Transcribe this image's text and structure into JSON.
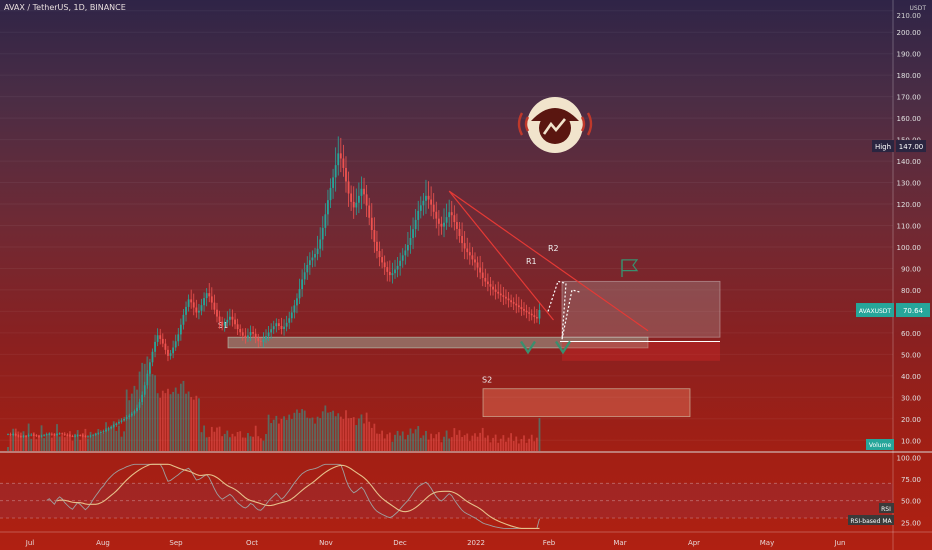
{
  "header": {
    "title": "AVAX / TetherUS, 1D, BINANCE"
  },
  "price_axis": {
    "currency": "USDT",
    "top_tick": "210.00",
    "ticks": [
      "200.00",
      "190.00",
      "180.00",
      "170.00",
      "160.00",
      "150.00",
      "140.00",
      "130.00",
      "120.00",
      "110.00",
      "100.00",
      "90.00",
      "80.00",
      "70.00",
      "60.00",
      "50.00",
      "40.00",
      "30.00",
      "20.00",
      "10.00"
    ],
    "high_badge_label": "High",
    "high_badge_value": "147.00",
    "symbol_badge": "AVAXUSDT",
    "last_price": "70.64",
    "volume_badge": "Volume"
  },
  "rsi_axis": {
    "ticks": [
      "100.00",
      "75.00",
      "50.00",
      "25.00"
    ],
    "rsi_badge": "RSI",
    "rsi_ma_badge": "RSI-based MA"
  },
  "time_axis": {
    "ticks": [
      "Jul",
      "Aug",
      "Sep",
      "Oct",
      "Nov",
      "Dec",
      "2022",
      "Feb",
      "Mar",
      "Apr",
      "May",
      "Jun"
    ]
  },
  "annotations": {
    "s1": "S1",
    "s2": "S2",
    "r1": "R1",
    "r2": "R2",
    "support_zone_s1": [
      53,
      58
    ],
    "support_zone_s2": [
      21,
      34
    ],
    "resistance_zone": [
      58,
      84
    ],
    "horizontal_line": 56
  },
  "colors": {
    "up": "#26a69a",
    "down": "#ef5350",
    "trendline": "#e53935",
    "projection": "#ffffff",
    "rsi": "#9e9e9e",
    "rsi_ma": "#e6c08a",
    "badge": "#26a69a"
  },
  "chart_data": {
    "type": "candlestick",
    "symbol": "AVAX / TetherUS",
    "interval": "1D",
    "x_range": [
      "2021-06-16",
      "2022-06-30"
    ],
    "y_range": [
      5,
      215
    ],
    "rsi_range": [
      15,
      105
    ],
    "close": [
      12.8,
      12.5,
      12.9,
      12.2,
      11.8,
      11.6,
      12.1,
      11.9,
      12.4,
      12.6,
      12.3,
      12.0,
      11.7,
      12.2,
      12.5,
      12.8,
      13.0,
      12.7,
      12.4,
      12.9,
      13.2,
      13.0,
      12.6,
      12.3,
      12.0,
      11.8,
      12.1,
      12.4,
      12.2,
      11.9,
      11.6,
      11.8,
      12.1,
      12.5,
      12.9,
      13.3,
      13.8,
      14.2,
      14.9,
      15.6,
      16.3,
      17.1,
      17.8,
      18.6,
      19.2,
      19.9,
      20.8,
      21.5,
      22.4,
      23.6,
      25.1,
      27.8,
      31.2,
      35.6,
      41.0,
      46.3,
      51.2,
      55.8,
      58.9,
      57.2,
      55.0,
      52.1,
      49.3,
      50.5,
      53.2,
      56.1,
      59.3,
      63.8,
      68.4,
      72.1,
      75.6,
      74.2,
      71.8,
      69.5,
      70.3,
      72.9,
      76.2,
      78.5,
      77.0,
      74.1,
      70.8,
      67.6,
      65.2,
      63.4,
      64.8,
      66.1,
      67.5,
      66.2,
      64.0,
      61.8,
      60.3,
      58.7,
      57.9,
      58.8,
      60.4,
      59.6,
      57.5,
      56.1,
      55.8,
      56.9,
      58.5,
      60.2,
      61.7,
      63.1,
      64.5,
      63.2,
      61.8,
      62.9,
      64.7,
      66.8,
      69.5,
      72.8,
      76.1,
      80.4,
      84.9,
      88.2,
      91.6,
      93.8,
      95.1,
      96.7,
      99.2,
      103.5,
      108.9,
      115.2,
      121.8,
      127.5,
      132.4,
      138.1,
      143.6,
      141.2,
      136.8,
      130.5,
      124.9,
      121.0,
      118.4,
      120.6,
      123.8,
      127.1,
      124.5,
      119.3,
      113.6,
      107.9,
      102.4,
      98.1,
      95.3,
      92.8,
      90.6,
      88.4,
      86.9,
      87.8,
      89.5,
      91.2,
      93.6,
      96.1,
      98.4,
      100.9,
      104.2,
      108.3,
      112.6,
      116.8,
      119.4,
      121.5,
      123.8,
      122.1,
      119.7,
      116.4,
      113.2,
      110.8,
      109.5,
      111.3,
      113.9,
      116.2,
      114.8,
      111.6,
      108.4,
      105.1,
      101.8,
      99.3,
      97.6,
      96.1,
      94.2,
      92.8,
      90.4,
      88.1,
      85.6,
      83.9,
      82.7,
      81.5,
      80.2,
      79.1,
      78.3,
      77.5,
      76.8,
      76.0,
      75.2,
      74.3,
      73.6,
      72.8,
      72.0,
      71.1,
      70.3,
      69.6,
      68.9,
      68.2,
      67.4,
      66.7,
      70.64
    ],
    "series": [
      {
        "name": "RSI"
      },
      {
        "name": "RSI-based MA"
      }
    ]
  }
}
